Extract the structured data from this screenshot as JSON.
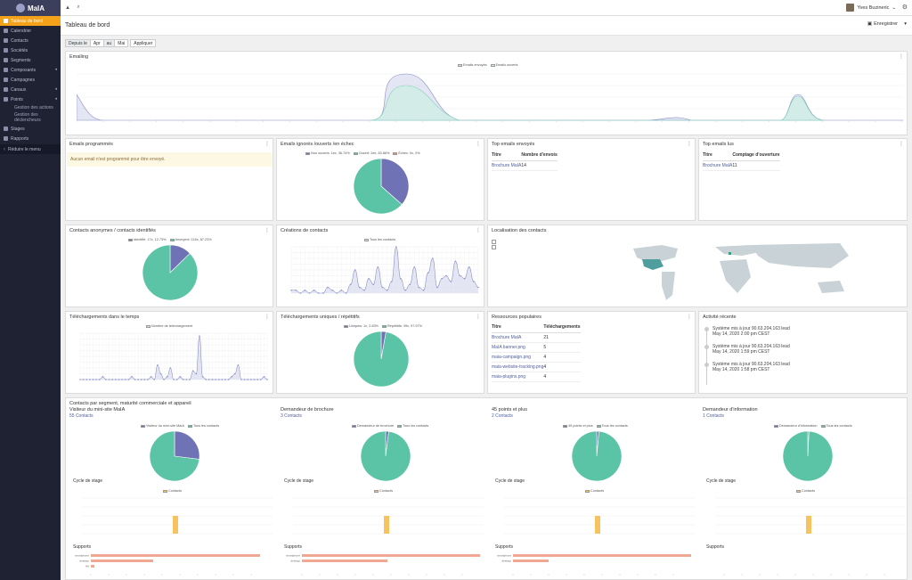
{
  "app": {
    "brand": "MaIA"
  },
  "sidebar": {
    "items": [
      {
        "label": "Tableau de bord",
        "icon": "dashboard-icon",
        "active": true
      },
      {
        "label": "Calendrier",
        "icon": "calendar-icon"
      },
      {
        "label": "Contacts",
        "icon": "user-icon"
      },
      {
        "label": "Sociétés",
        "icon": "building-icon"
      },
      {
        "label": "Segments",
        "icon": "pie-icon"
      },
      {
        "label": "Composants",
        "icon": "puzzle-icon",
        "caret": true
      },
      {
        "label": "Campagnes",
        "icon": "clock-icon"
      },
      {
        "label": "Canaux",
        "icon": "rss-icon",
        "caret": true
      },
      {
        "label": "Points",
        "icon": "calculator-icon",
        "caret": true
      }
    ],
    "points_sub": [
      "Gestion des actions",
      "Gestion des déclencheurs"
    ],
    "items2": [
      {
        "label": "Stages",
        "icon": "filter-icon"
      },
      {
        "label": "Rapports",
        "icon": "chart-icon"
      }
    ],
    "reduce": "Réduire le menu"
  },
  "topbar": {
    "user_name": "Yves Buzineric"
  },
  "header": {
    "title": "Tableau de bord",
    "save_label": "Enregistrer"
  },
  "filter": {
    "from_label": "Depuis le",
    "from_value": "Apr",
    "to_label": "au",
    "to_value": "Mai",
    "apply_label": "Appliquer"
  },
  "emailing": {
    "title": "Emailing",
    "legend": [
      "Emails envoyés",
      "Emails ouverts"
    ],
    "colors": {
      "sent": "#8a8fc7",
      "opened": "#7fd3bc"
    }
  },
  "scheduled": {
    "title": "Emails programmés",
    "message": "Aucun email n'est programmé pour être envoyé."
  },
  "ignored": {
    "title": "Emails ignorés /ouverts /en échec",
    "legend": [
      "Non ouverts: 1ex, 36.74%",
      "Ouvert: 2ex, 63.86%",
      "Échec: 0x, 0%"
    ],
    "chart_data": {
      "type": "pie",
      "labels": [
        "Non ouverts",
        "Ouvert",
        "Échec"
      ],
      "values": [
        36.74,
        63.86,
        0
      ],
      "colors": [
        "#6f72b4",
        "#5cc4a6",
        "#e88a7a"
      ]
    }
  },
  "top_sent": {
    "title": "Top emails envoyés",
    "col1": "Titre",
    "col2": "Nombre d'envois",
    "rows": [
      {
        "name": "Brochure MaIA",
        "value": "14"
      }
    ]
  },
  "top_read": {
    "title": "Top emails lus",
    "col1": "Titre",
    "col2": "Comptage d'ouverture",
    "rows": [
      {
        "name": "Brochure MaIA",
        "value": "11"
      }
    ]
  },
  "anon": {
    "title": "Contacts anonymes / contacts identifiés",
    "legend": [
      "Identifié: 17x, 12.73%",
      "Anonyme: 116x, 87.23%"
    ],
    "chart_data": {
      "type": "pie",
      "labels": [
        "Identifié",
        "Anonyme"
      ],
      "values": [
        12.73,
        87.23
      ],
      "colors": [
        "#6f72b4",
        "#5cc4a6"
      ]
    }
  },
  "creations": {
    "title": "Créations de contacts",
    "legend": "Tous les contacts",
    "chart_data": {
      "type": "line",
      "values": [
        1,
        1,
        0,
        1,
        0,
        1,
        0,
        0,
        2,
        1,
        0,
        1,
        0,
        3,
        8,
        2,
        1,
        5,
        3,
        9,
        2,
        1,
        4,
        16,
        5,
        1,
        3,
        9,
        2,
        1,
        7,
        12,
        2,
        5,
        6,
        4,
        11,
        6,
        5,
        9,
        4,
        2
      ],
      "ylim": [
        0,
        16
      ]
    }
  },
  "map": {
    "title": "Localisation des contacts"
  },
  "downloads": {
    "title": "Téléchargements dans le temps",
    "legend": "Nombre de téléchargement",
    "chart_data": {
      "type": "line",
      "values": [
        0,
        0,
        0,
        0,
        0,
        0,
        0,
        1,
        0,
        0,
        0,
        0,
        0,
        0,
        0,
        0,
        1,
        0,
        0,
        0,
        0,
        0,
        1,
        0,
        5,
        2,
        0,
        1,
        4,
        0,
        0,
        1,
        0,
        0,
        0,
        3,
        2,
        15,
        1,
        0,
        0,
        0,
        0,
        0,
        0,
        0,
        0,
        1,
        2,
        5,
        0,
        0,
        0,
        0,
        0,
        0,
        0,
        1,
        0
      ],
      "ylim": [
        0,
        16
      ]
    }
  },
  "unique_dl": {
    "title": "Téléchargements uniques / répétitifs",
    "legend": [
      "Uniques: 1x, 2.83%",
      "Répétitifs: 39x, 97.97%"
    ],
    "chart_data": {
      "type": "pie",
      "labels": [
        "Uniques",
        "Répétitifs"
      ],
      "values": [
        2.83,
        97.97
      ],
      "colors": [
        "#6f72b4",
        "#5cc4a6"
      ]
    }
  },
  "popular": {
    "title": "Ressources populaires",
    "col1": "Titre",
    "col2": "Téléchargements",
    "rows": [
      {
        "name": "Brochure MaIA",
        "value": "21"
      },
      {
        "name": "MaIA banner.png",
        "value": "5"
      },
      {
        "name": "maia-campaign.png",
        "value": "4"
      },
      {
        "name": "maia-website-tracking.png",
        "value": "4"
      },
      {
        "name": "maia-plugins.png",
        "value": "4"
      }
    ]
  },
  "activity": {
    "title": "Activité récente",
    "items": [
      {
        "text": "Système mis à jour 90.63.204.163 lead",
        "date": "May 14, 2020 2:00 pm CEST"
      },
      {
        "text": "Système mis à jour 90.63.204.163 lead",
        "date": "May 14, 2020 1:59 pm CEST"
      },
      {
        "text": "Système mis à jour 90.63.204.163 lead",
        "date": "May 14, 2020 1:58 pm CEST"
      }
    ]
  },
  "segments": {
    "title": "Contacts par segment, maturité commerciale et appareil",
    "stage_label": "Cycle de stage",
    "supports_label": "Supports",
    "stage_legend": "Contacts",
    "cols": [
      {
        "name": "Visiteur du mini-site MaIA",
        "count": "55 Contacts",
        "legend": [
          "Visiteur du mini-site MaIA",
          "Tous les contacts"
        ],
        "pie": [
          27,
          73
        ],
        "supports": [
          "smartphone",
          "desktop",
          "NA"
        ],
        "support_values": [
          95,
          35,
          2
        ]
      },
      {
        "name": "Demandeur de brochure",
        "count": "3 Contacts",
        "legend": [
          "Demandeur de brochure",
          "Tous les contacts"
        ],
        "pie": [
          2,
          98
        ],
        "supports": [
          "smartphone",
          "desktop"
        ],
        "support_values": [
          100,
          48
        ]
      },
      {
        "name": "45 points et plus",
        "count": "2 Contacts",
        "legend": [
          "45 points et plus",
          "Tous les contacts"
        ],
        "pie": [
          1.5,
          98.5
        ],
        "supports": [
          "smartphone",
          "desktop"
        ],
        "support_values": [
          100,
          20
        ]
      },
      {
        "name": "Demandeur d'information",
        "count": "1 Contacts",
        "legend": [
          "Demandeur d'information",
          "Tous les contacts"
        ],
        "pie": [
          0.8,
          99.2
        ],
        "supports": [],
        "support_values": []
      }
    ]
  }
}
